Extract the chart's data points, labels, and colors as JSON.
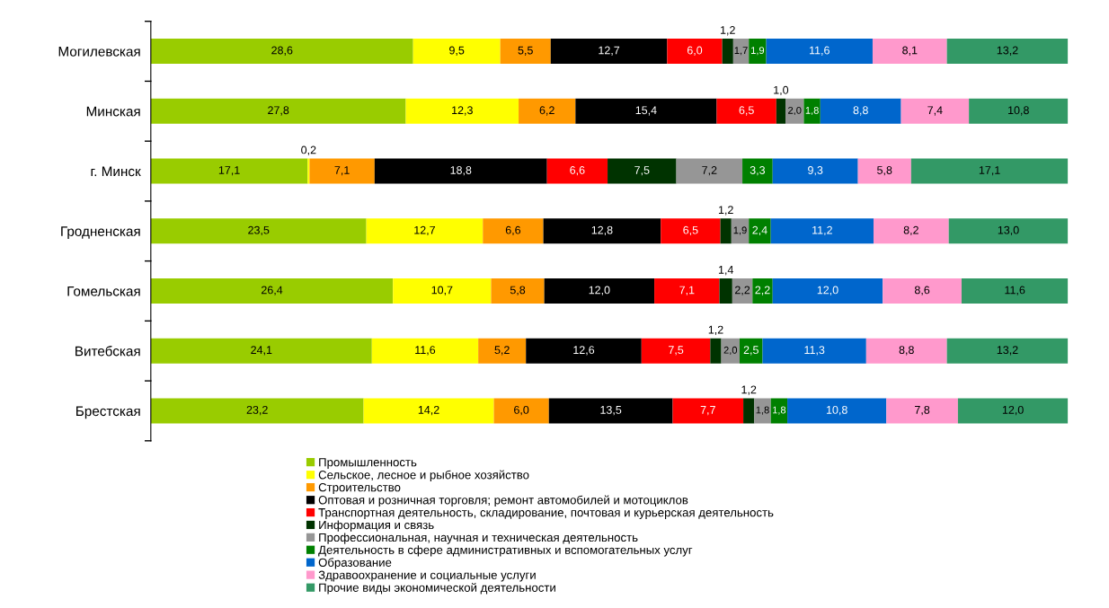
{
  "chart_data": {
    "type": "bar",
    "orientation": "horizontal",
    "stacked": true,
    "legend": "bottom",
    "grid": false,
    "tick_labels": "y",
    "xlim": [
      0,
      100
    ],
    "categories": [
      "Могилевская",
      "Минская",
      "г. Минск",
      "Гродненская",
      "Гомельская",
      "Витебская",
      "Брестская"
    ],
    "series": [
      {
        "name": "Промышленность",
        "color": "#99cc00",
        "values": [
          28.6,
          27.8,
          17.1,
          23.5,
          26.4,
          24.1,
          23.2
        ],
        "value_labels": [
          "28,6",
          "27,8",
          "17,1",
          "23,5",
          "26,4",
          "24,1",
          "23,2"
        ]
      },
      {
        "name": "Сельское, лесное и рыбное хозяйство",
        "color": "#ffff00",
        "values": [
          9.5,
          12.3,
          0.2,
          12.7,
          10.7,
          11.6,
          14.2
        ],
        "value_labels": [
          "9,5",
          "12,3",
          "0,2",
          "12,7",
          "10,7",
          "11,6",
          "14,2"
        ]
      },
      {
        "name": "Строительство",
        "color": "#ff9900",
        "values": [
          5.5,
          6.2,
          7.1,
          6.6,
          5.8,
          5.2,
          6.0
        ],
        "value_labels": [
          "5,5",
          "6,2",
          "7,1",
          "6,6",
          "5,8",
          "5,2",
          "6,0"
        ]
      },
      {
        "name": "Оптовая и розничная торговля; ремонт автомобилей и мотоциклов",
        "color": "#000000",
        "values": [
          12.7,
          15.4,
          18.8,
          12.8,
          12.0,
          12.6,
          13.5
        ],
        "value_labels": [
          "12,7",
          "15,4",
          "18,8",
          "12,8",
          "12,0",
          "12,6",
          "13,5"
        ]
      },
      {
        "name": "Транспортная деятельность, складирование, почтовая и курьерская деятельность",
        "color": "#ff0000",
        "values": [
          6.0,
          6.5,
          6.6,
          6.5,
          7.1,
          7.5,
          7.7
        ],
        "value_labels": [
          "6,0",
          "6,5",
          "6,6",
          "6,5",
          "7,1",
          "7,5",
          "7,7"
        ]
      },
      {
        "name": "Информация и связь",
        "color": "#003300",
        "values": [
          1.2,
          1.0,
          7.5,
          1.2,
          1.4,
          1.2,
          1.2
        ],
        "value_labels": [
          "1,2",
          "1,0",
          "7,5",
          "1,2",
          "1,4",
          "1,2",
          "1,2"
        ]
      },
      {
        "name": "Профессиональная, научная и техническая деятельность",
        "color": "#969696",
        "values": [
          1.7,
          2.0,
          7.2,
          1.9,
          2.2,
          2.0,
          1.8
        ],
        "value_labels": [
          "1,7",
          "2,0",
          "7,2",
          "1,9",
          "2,2",
          "2,0",
          "1,8"
        ]
      },
      {
        "name": "Деятельность в сфере административных и вспомогательных услуг",
        "color": "#008000",
        "values": [
          1.9,
          1.8,
          3.3,
          2.4,
          2.2,
          2.5,
          1.8
        ],
        "value_labels": [
          "1,9",
          "1,8",
          "3,3",
          "2,4",
          "2,2",
          "2,5",
          "1,8"
        ]
      },
      {
        "name": "Образование",
        "color": "#0066cc",
        "values": [
          11.6,
          8.8,
          9.3,
          11.2,
          12.0,
          11.3,
          10.8
        ],
        "value_labels": [
          "11,6",
          "8,8",
          "9,3",
          "11,2",
          "12,0",
          "11,3",
          "10,8"
        ]
      },
      {
        "name": "Здравоохранение и социальные услуги",
        "color": "#ff99cc",
        "values": [
          8.1,
          7.4,
          5.8,
          8.2,
          8.6,
          8.8,
          7.8
        ],
        "value_labels": [
          "8,1",
          "7,4",
          "5,8",
          "8,2",
          "8,6",
          "8,8",
          "7,8"
        ]
      },
      {
        "name": "Прочие виды экономической деятельности",
        "color": "#339966",
        "values": [
          13.2,
          10.8,
          17.1,
          13.0,
          11.6,
          13.2,
          12.0
        ],
        "value_labels": [
          "13,2",
          "10,8",
          "17,1",
          "13,0",
          "11,6",
          "13,2",
          "12,0"
        ]
      }
    ]
  }
}
